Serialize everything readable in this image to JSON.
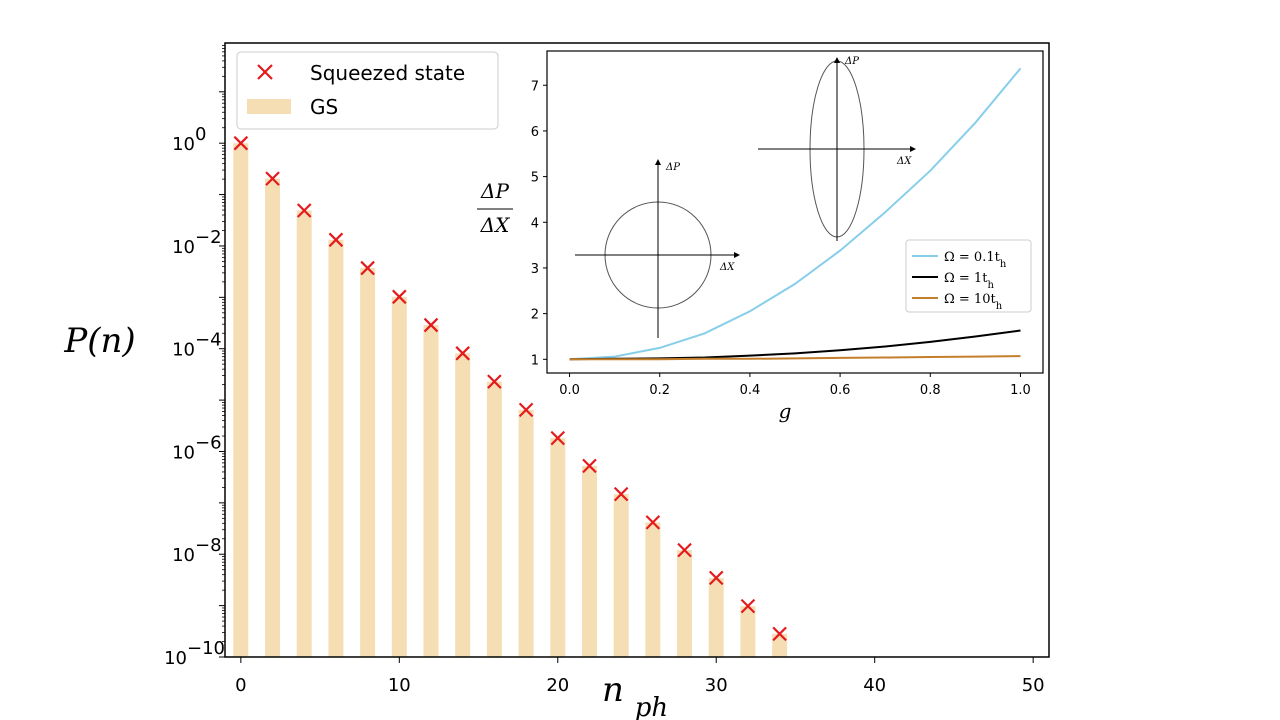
{
  "chart_data": [
    {
      "type": "bar",
      "name": "main",
      "xlabel": "n_ph",
      "ylabel": "P(n)",
      "xlim": [
        -1,
        51
      ],
      "ylim_exponent": [
        -10,
        1.95
      ],
      "yscale": "log",
      "xticks": [
        0,
        10,
        20,
        30,
        40,
        50
      ],
      "yticks": [
        {
          "value": 0,
          "base": "10",
          "exp": "0"
        },
        {
          "value": -2,
          "base": "10",
          "exp": "−2"
        },
        {
          "value": -4,
          "base": "10",
          "exp": "−4"
        },
        {
          "value": -6,
          "base": "10",
          "exp": "−6"
        },
        {
          "value": -8,
          "base": "10",
          "exp": "−8"
        },
        {
          "value": -10,
          "base": "10",
          "exp": "−10"
        }
      ],
      "x": [
        0,
        2,
        4,
        6,
        8,
        10,
        12,
        14,
        16,
        18,
        20,
        22,
        24,
        26,
        28,
        30,
        32,
        34
      ],
      "log10_values": [
        0,
        -0.69,
        -1.31,
        -1.88,
        -2.43,
        -2.99,
        -3.54,
        -4.09,
        -4.64,
        -5.19,
        -5.74,
        -6.28,
        -6.83,
        -7.38,
        -7.92,
        -8.46,
        -9.01,
        -9.55
      ],
      "legend": {
        "location": "upper-left",
        "entries": [
          {
            "label": "Squeezed state",
            "marker": "x",
            "color": "#e41a1c"
          },
          {
            "label": "GS",
            "marker": "bar",
            "color": "#f5deb3"
          }
        ]
      }
    },
    {
      "type": "line",
      "name": "inset",
      "xlabel": "g",
      "ylabel_num": "ΔP",
      "ylabel_den": "ΔX",
      "xlim": [
        -0.05,
        1.05
      ],
      "ylim": [
        0.7,
        7.75
      ],
      "xticks": [
        "0.0",
        "0.2",
        "0.4",
        "0.6",
        "0.8",
        "1.0"
      ],
      "yticks": [
        "1",
        "2",
        "3",
        "4",
        "5",
        "6",
        "7"
      ],
      "x": [
        0,
        0.1,
        0.2,
        0.3,
        0.4,
        0.5,
        0.6,
        0.7,
        0.8,
        0.9,
        1.0
      ],
      "series": [
        {
          "name": "Ω = 0.1t",
          "sub": "h",
          "color": "#87ceeb",
          "values": [
            1.0,
            1.06,
            1.25,
            1.57,
            2.05,
            2.65,
            3.38,
            4.22,
            5.13,
            6.18,
            7.37
          ]
        },
        {
          "name": "Ω = 1t",
          "sub": "h",
          "color": "#000000",
          "values": [
            1.0,
            1.01,
            1.02,
            1.04,
            1.08,
            1.13,
            1.2,
            1.28,
            1.38,
            1.5,
            1.63
          ]
        },
        {
          "name": "Ω = 10t",
          "sub": "h",
          "color": "#c47f2c",
          "values": [
            1.0,
            1.0,
            1.0,
            1.01,
            1.01,
            1.02,
            1.03,
            1.04,
            1.05,
            1.06,
            1.07
          ]
        }
      ],
      "legend": {
        "location": "lower-right"
      },
      "diagrams": [
        {
          "shape": "circle",
          "x_axis_label": "ΔX",
          "y_axis_label": "ΔP"
        },
        {
          "shape": "ellipse",
          "x_axis_label": "ΔX",
          "y_axis_label": "ΔP"
        }
      ]
    }
  ]
}
